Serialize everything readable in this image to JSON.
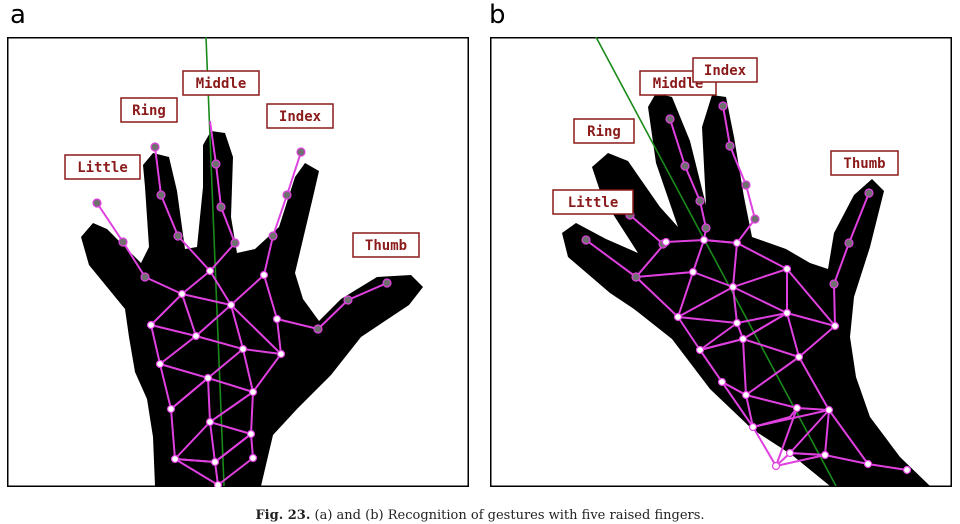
{
  "panels": [
    {
      "letter": "a",
      "labels": {
        "little": "Little",
        "ring": "Ring",
        "middle": "Middle",
        "index": "Index",
        "thumb": "Thumb"
      }
    },
    {
      "letter": "b",
      "labels": {
        "little": "Little",
        "ring": "Ring",
        "middle": "Middle",
        "index": "Index",
        "thumb": "Thumb"
      }
    }
  ],
  "caption": {
    "fig": "Fig. 23.",
    "text": "(a) and (b) Recognition of gestures with five raised fingers."
  },
  "colors": {
    "mesh": "#e040e0",
    "axis": "#1a8a1a",
    "label": "#8b1a1a",
    "hand": "#000000"
  }
}
